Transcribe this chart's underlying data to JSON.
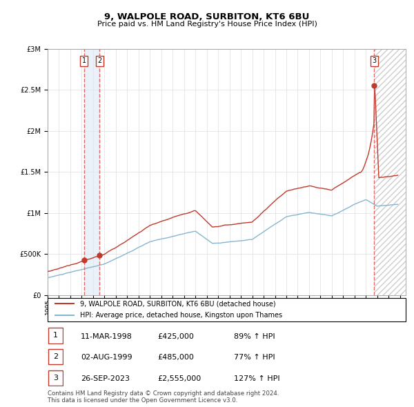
{
  "title": "9, WALPOLE ROAD, SURBITON, KT6 6BU",
  "subtitle": "Price paid vs. HM Land Registry's House Price Index (HPI)",
  "legend_line1": "9, WALPOLE ROAD, SURBITON, KT6 6BU (detached house)",
  "legend_line2": "HPI: Average price, detached house, Kingston upon Thames",
  "footer": "Contains HM Land Registry data © Crown copyright and database right 2024.\nThis data is licensed under the Open Government Licence v3.0.",
  "transactions": [
    {
      "label": "1",
      "date": "11-MAR-1998",
      "price": 425000,
      "hpi_pct": "89% ↑ HPI",
      "year": 1998.19
    },
    {
      "label": "2",
      "date": "02-AUG-1999",
      "price": 485000,
      "hpi_pct": "77% ↑ HPI",
      "year": 1999.58
    },
    {
      "label": "3",
      "date": "26-SEP-2023",
      "price": 2555000,
      "hpi_pct": "127% ↑ HPI",
      "year": 2023.73
    }
  ],
  "red_line_color": "#c0392b",
  "blue_line_color": "#85b5d0",
  "bg_shade_color": "#dce9f5",
  "dashed_line_color": "#e05050",
  "grid_color": "#dddddd",
  "ylim": [
    0,
    3000000
  ],
  "xlim_start": 1995.0,
  "xlim_end": 2026.5
}
